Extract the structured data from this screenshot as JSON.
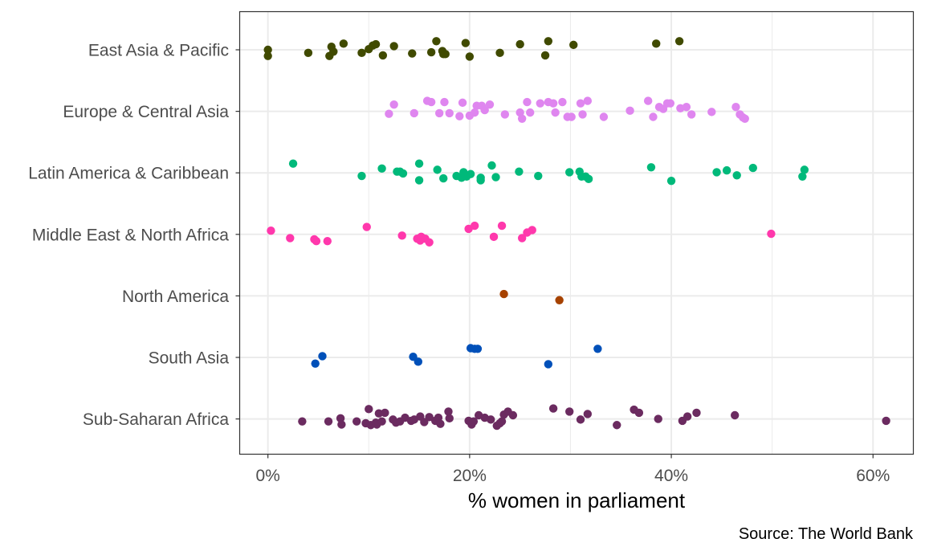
{
  "chart_data": {
    "type": "scatter",
    "title": "",
    "xlabel": "% women in parliament",
    "ylabel": "",
    "caption": "Source: The World Bank",
    "xlim": [
      -2.8,
      64
    ],
    "x_ticks": [
      0,
      20,
      40,
      60
    ],
    "x_tick_labels": [
      "0%",
      "20%",
      "40%",
      "60%"
    ],
    "grid": true,
    "legend": "none",
    "categories": [
      "East Asia & Pacific",
      "Europe & Central Asia",
      "Latin America & Caribbean",
      "Middle East & North Africa",
      "North America",
      "South Asia",
      "Sub-Saharan Africa"
    ],
    "series": [
      {
        "category": "East Asia & Pacific",
        "color": "#404a00",
        "points": [
          {
            "x": 0.0,
            "jitter": 0.0
          },
          {
            "x": 0.0,
            "jitter": 0.1
          },
          {
            "x": 4.0,
            "jitter": 0.05
          },
          {
            "x": 6.1,
            "jitter": 0.1
          },
          {
            "x": 6.3,
            "jitter": -0.05
          },
          {
            "x": 6.5,
            "jitter": 0.03
          },
          {
            "x": 7.5,
            "jitter": -0.1
          },
          {
            "x": 9.3,
            "jitter": 0.05
          },
          {
            "x": 10.0,
            "jitter": -0.01
          },
          {
            "x": 10.4,
            "jitter": -0.07
          },
          {
            "x": 10.7,
            "jitter": -0.09
          },
          {
            "x": 11.4,
            "jitter": 0.09
          },
          {
            "x": 12.5,
            "jitter": -0.06
          },
          {
            "x": 14.3,
            "jitter": 0.06
          },
          {
            "x": 16.2,
            "jitter": 0.04
          },
          {
            "x": 16.7,
            "jitter": -0.14
          },
          {
            "x": 17.3,
            "jitter": 0.02
          },
          {
            "x": 17.4,
            "jitter": 0.07
          },
          {
            "x": 17.6,
            "jitter": 0.07
          },
          {
            "x": 19.6,
            "jitter": -0.11
          },
          {
            "x": 20.0,
            "jitter": 0.11
          },
          {
            "x": 23.0,
            "jitter": 0.05
          },
          {
            "x": 25.0,
            "jitter": -0.09
          },
          {
            "x": 27.5,
            "jitter": 0.09
          },
          {
            "x": 27.8,
            "jitter": -0.14
          },
          {
            "x": 30.3,
            "jitter": -0.08
          },
          {
            "x": 38.5,
            "jitter": -0.1
          },
          {
            "x": 40.8,
            "jitter": -0.14
          }
        ]
      },
      {
        "category": "Europe & Central Asia",
        "color": "#df86ef",
        "points": [
          {
            "x": 12.0,
            "jitter": 0.04
          },
          {
            "x": 12.5,
            "jitter": -0.11
          },
          {
            "x": 14.5,
            "jitter": 0.03
          },
          {
            "x": 15.8,
            "jitter": -0.17
          },
          {
            "x": 16.2,
            "jitter": -0.15
          },
          {
            "x": 17.0,
            "jitter": 0.03
          },
          {
            "x": 17.5,
            "jitter": -0.15
          },
          {
            "x": 18.0,
            "jitter": 0.03
          },
          {
            "x": 19.0,
            "jitter": 0.08
          },
          {
            "x": 19.3,
            "jitter": -0.14
          },
          {
            "x": 20.0,
            "jitter": 0.07
          },
          {
            "x": 20.5,
            "jitter": 0.02
          },
          {
            "x": 20.7,
            "jitter": -0.09
          },
          {
            "x": 21.2,
            "jitter": -0.09
          },
          {
            "x": 21.5,
            "jitter": -0.02
          },
          {
            "x": 22.0,
            "jitter": -0.11
          },
          {
            "x": 23.5,
            "jitter": 0.05
          },
          {
            "x": 25.0,
            "jitter": 0.02
          },
          {
            "x": 25.2,
            "jitter": 0.12
          },
          {
            "x": 25.7,
            "jitter": -0.15
          },
          {
            "x": 26.0,
            "jitter": 0.02
          },
          {
            "x": 27.0,
            "jitter": -0.13
          },
          {
            "x": 27.8,
            "jitter": -0.15
          },
          {
            "x": 28.3,
            "jitter": -0.13
          },
          {
            "x": 28.5,
            "jitter": 0.02
          },
          {
            "x": 29.2,
            "jitter": -0.15
          },
          {
            "x": 29.7,
            "jitter": 0.09
          },
          {
            "x": 30.1,
            "jitter": 0.09
          },
          {
            "x": 31.0,
            "jitter": -0.13
          },
          {
            "x": 31.2,
            "jitter": 0.05
          },
          {
            "x": 31.7,
            "jitter": -0.17
          },
          {
            "x": 33.3,
            "jitter": 0.09
          },
          {
            "x": 35.9,
            "jitter": -0.01
          },
          {
            "x": 37.7,
            "jitter": -0.17
          },
          {
            "x": 38.2,
            "jitter": 0.09
          },
          {
            "x": 38.8,
            "jitter": -0.07
          },
          {
            "x": 39.2,
            "jitter": -0.04
          },
          {
            "x": 39.6,
            "jitter": -0.13
          },
          {
            "x": 39.9,
            "jitter": -0.13
          },
          {
            "x": 40.9,
            "jitter": -0.05
          },
          {
            "x": 41.5,
            "jitter": -0.07
          },
          {
            "x": 42.0,
            "jitter": 0.05
          },
          {
            "x": 44.0,
            "jitter": 0.01
          },
          {
            "x": 46.4,
            "jitter": -0.07
          },
          {
            "x": 46.8,
            "jitter": 0.05
          },
          {
            "x": 47.1,
            "jitter": 0.1
          },
          {
            "x": 47.3,
            "jitter": 0.12
          }
        ]
      },
      {
        "category": "Latin America & Caribbean",
        "color": "#00b97a",
        "points": [
          {
            "x": 2.5,
            "jitter": -0.15
          },
          {
            "x": 9.3,
            "jitter": 0.05
          },
          {
            "x": 11.3,
            "jitter": -0.07
          },
          {
            "x": 12.8,
            "jitter": -0.02
          },
          {
            "x": 13.1,
            "jitter": -0.02
          },
          {
            "x": 13.4,
            "jitter": 0.01
          },
          {
            "x": 15.0,
            "jitter": -0.15
          },
          {
            "x": 15.0,
            "jitter": 0.12
          },
          {
            "x": 16.8,
            "jitter": -0.05
          },
          {
            "x": 17.4,
            "jitter": 0.09
          },
          {
            "x": 18.7,
            "jitter": 0.05
          },
          {
            "x": 19.2,
            "jitter": 0.08
          },
          {
            "x": 19.4,
            "jitter": -0.01
          },
          {
            "x": 19.7,
            "jitter": 0.06
          },
          {
            "x": 20.1,
            "jitter": 0.02
          },
          {
            "x": 21.1,
            "jitter": 0.08
          },
          {
            "x": 21.1,
            "jitter": 0.12
          },
          {
            "x": 22.2,
            "jitter": -0.12
          },
          {
            "x": 22.6,
            "jitter": 0.07
          },
          {
            "x": 24.9,
            "jitter": -0.02
          },
          {
            "x": 26.8,
            "jitter": 0.05
          },
          {
            "x": 29.9,
            "jitter": -0.01
          },
          {
            "x": 30.9,
            "jitter": -0.02
          },
          {
            "x": 31.1,
            "jitter": 0.06
          },
          {
            "x": 31.5,
            "jitter": 0.06
          },
          {
            "x": 31.8,
            "jitter": 0.1
          },
          {
            "x": 38.0,
            "jitter": -0.09
          },
          {
            "x": 40.0,
            "jitter": 0.13
          },
          {
            "x": 44.5,
            "jitter": -0.01
          },
          {
            "x": 45.5,
            "jitter": -0.04
          },
          {
            "x": 46.5,
            "jitter": 0.04
          },
          {
            "x": 48.1,
            "jitter": -0.08
          },
          {
            "x": 53.0,
            "jitter": 0.06
          },
          {
            "x": 53.2,
            "jitter": -0.05
          }
        ]
      },
      {
        "category": "Middle East & North Africa",
        "color": "#ff38ac",
        "points": [
          {
            "x": 0.3,
            "jitter": -0.06
          },
          {
            "x": 2.2,
            "jitter": 0.06
          },
          {
            "x": 4.6,
            "jitter": 0.08
          },
          {
            "x": 4.8,
            "jitter": 0.11
          },
          {
            "x": 5.9,
            "jitter": 0.11
          },
          {
            "x": 9.8,
            "jitter": -0.12
          },
          {
            "x": 13.3,
            "jitter": 0.02
          },
          {
            "x": 14.8,
            "jitter": 0.07
          },
          {
            "x": 15.1,
            "jitter": 0.1
          },
          {
            "x": 15.2,
            "jitter": 0.04
          },
          {
            "x": 15.6,
            "jitter": 0.07
          },
          {
            "x": 16.0,
            "jitter": 0.13
          },
          {
            "x": 19.9,
            "jitter": -0.09
          },
          {
            "x": 20.5,
            "jitter": -0.14
          },
          {
            "x": 22.4,
            "jitter": 0.04
          },
          {
            "x": 23.2,
            "jitter": -0.14
          },
          {
            "x": 25.2,
            "jitter": 0.06
          },
          {
            "x": 25.7,
            "jitter": -0.03
          },
          {
            "x": 26.2,
            "jitter": -0.07
          },
          {
            "x": 49.9,
            "jitter": -0.01
          }
        ]
      },
      {
        "category": "North America",
        "color": "#a64200",
        "points": [
          {
            "x": 23.4,
            "jitter": -0.03
          },
          {
            "x": 28.9,
            "jitter": 0.07
          }
        ]
      },
      {
        "category": "South Asia",
        "color": "#0050b9",
        "points": [
          {
            "x": 4.7,
            "jitter": 0.1
          },
          {
            "x": 5.4,
            "jitter": -0.02
          },
          {
            "x": 14.4,
            "jitter": -0.01
          },
          {
            "x": 14.9,
            "jitter": 0.07
          },
          {
            "x": 20.1,
            "jitter": -0.15
          },
          {
            "x": 20.5,
            "jitter": -0.14
          },
          {
            "x": 20.8,
            "jitter": -0.14
          },
          {
            "x": 27.8,
            "jitter": 0.11
          },
          {
            "x": 32.7,
            "jitter": -0.14
          }
        ]
      },
      {
        "category": "Sub-Saharan Africa",
        "color": "#6b2b60",
        "points": [
          {
            "x": 3.4,
            "jitter": 0.04
          },
          {
            "x": 6.0,
            "jitter": 0.04
          },
          {
            "x": 7.2,
            "jitter": -0.01
          },
          {
            "x": 7.3,
            "jitter": 0.09
          },
          {
            "x": 8.8,
            "jitter": 0.04
          },
          {
            "x": 9.7,
            "jitter": 0.07
          },
          {
            "x": 10.0,
            "jitter": -0.16
          },
          {
            "x": 10.2,
            "jitter": 0.1
          },
          {
            "x": 10.7,
            "jitter": 0.06
          },
          {
            "x": 10.8,
            "jitter": 0.09
          },
          {
            "x": 11.0,
            "jitter": -0.09
          },
          {
            "x": 11.3,
            "jitter": 0.04
          },
          {
            "x": 11.6,
            "jitter": -0.1
          },
          {
            "x": 12.4,
            "jitter": 0.01
          },
          {
            "x": 12.7,
            "jitter": 0.06
          },
          {
            "x": 13.1,
            "jitter": 0.04
          },
          {
            "x": 13.6,
            "jitter": -0.02
          },
          {
            "x": 14.2,
            "jitter": 0.03
          },
          {
            "x": 14.5,
            "jitter": 0.01
          },
          {
            "x": 15.1,
            "jitter": -0.04
          },
          {
            "x": 15.5,
            "jitter": 0.05
          },
          {
            "x": 16.0,
            "jitter": -0.03
          },
          {
            "x": 16.6,
            "jitter": 0.03
          },
          {
            "x": 16.9,
            "jitter": -0.02
          },
          {
            "x": 17.1,
            "jitter": 0.08
          },
          {
            "x": 17.9,
            "jitter": -0.12
          },
          {
            "x": 18.0,
            "jitter": -0.01
          },
          {
            "x": 19.9,
            "jitter": 0.03
          },
          {
            "x": 20.2,
            "jitter": 0.09
          },
          {
            "x": 20.4,
            "jitter": 0.04
          },
          {
            "x": 20.9,
            "jitter": -0.06
          },
          {
            "x": 21.5,
            "jitter": -0.02
          },
          {
            "x": 22.1,
            "jitter": 0.01
          },
          {
            "x": 22.7,
            "jitter": 0.11
          },
          {
            "x": 23.0,
            "jitter": 0.07
          },
          {
            "x": 23.2,
            "jitter": 0.04
          },
          {
            "x": 23.4,
            "jitter": -0.07
          },
          {
            "x": 23.8,
            "jitter": -0.12
          },
          {
            "x": 24.3,
            "jitter": -0.06
          },
          {
            "x": 28.3,
            "jitter": -0.17
          },
          {
            "x": 29.9,
            "jitter": -0.12
          },
          {
            "x": 31.0,
            "jitter": 0.01
          },
          {
            "x": 31.7,
            "jitter": -0.08
          },
          {
            "x": 34.6,
            "jitter": 0.1
          },
          {
            "x": 36.3,
            "jitter": -0.15
          },
          {
            "x": 36.8,
            "jitter": -0.1
          },
          {
            "x": 38.7,
            "jitter": 0.0
          },
          {
            "x": 41.1,
            "jitter": 0.03
          },
          {
            "x": 41.6,
            "jitter": -0.04
          },
          {
            "x": 42.5,
            "jitter": -0.1
          },
          {
            "x": 46.3,
            "jitter": -0.06
          },
          {
            "x": 61.3,
            "jitter": 0.03
          }
        ]
      }
    ]
  }
}
